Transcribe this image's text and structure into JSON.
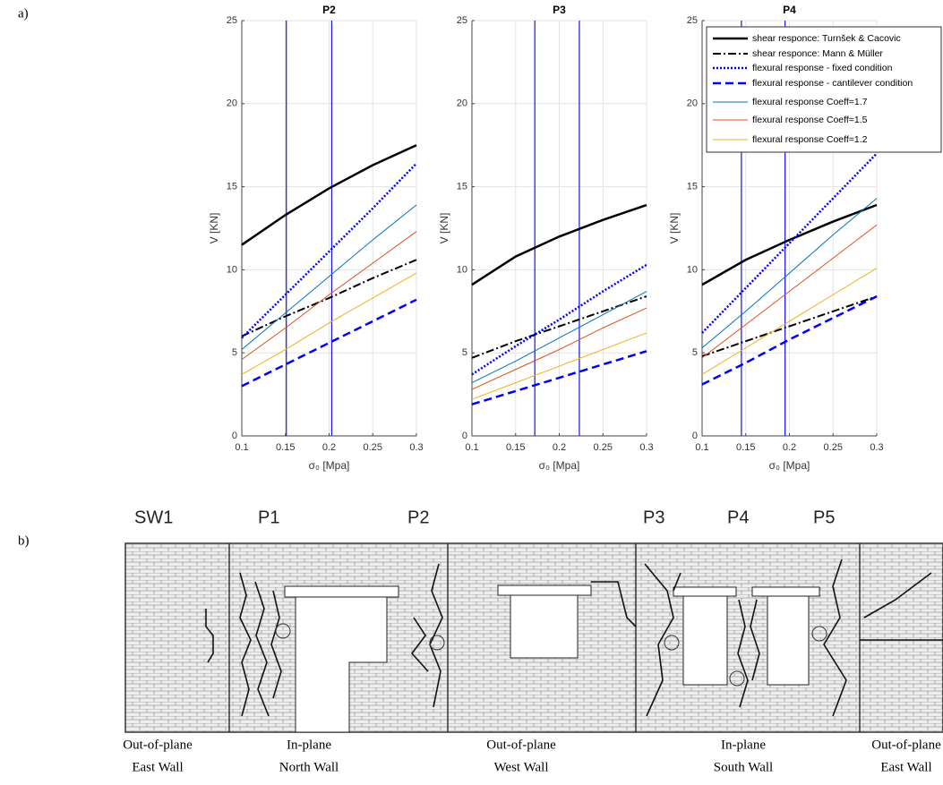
{
  "panel_labels": [
    "a)",
    "b)"
  ],
  "chart_data": [
    {
      "type": "line",
      "title": "P2",
      "xlabel": "σ₀ [Mpa]",
      "ylabel": "V [KN]",
      "x": [
        0.1,
        0.15,
        0.2,
        0.25,
        0.3
      ],
      "xlim": [
        0.1,
        0.3
      ],
      "ylim": [
        0,
        25
      ],
      "xticks": [
        0.1,
        0.15,
        0.2,
        0.25,
        0.3
      ],
      "yticks": [
        0,
        5,
        10,
        15,
        20,
        25
      ],
      "grid": true,
      "vlines": {
        "color": "#1414e6",
        "values": [
          0.151,
          0.203
        ]
      },
      "series": [
        {
          "color": "#000000",
          "dash": "solid",
          "width": 2.5,
          "values": [
            11.5,
            13.3,
            14.9,
            16.3,
            17.5
          ]
        },
        {
          "color": "#000000",
          "dash": "dashdot",
          "width": 2,
          "values": [
            6.0,
            7.2,
            8.3,
            9.5,
            10.6
          ]
        },
        {
          "color": "#0000ff",
          "dash": "dotted",
          "width": 2.5,
          "values": [
            5.9,
            8.5,
            11.1,
            13.7,
            16.4
          ]
        },
        {
          "color": "#0000ff",
          "dash": "dashed",
          "width": 2.5,
          "values": [
            3.0,
            4.3,
            5.6,
            6.9,
            8.2
          ]
        },
        {
          "color": "#0072bd",
          "dash": "solid",
          "width": 1,
          "values": [
            5.2,
            7.4,
            9.6,
            11.8,
            13.9
          ]
        },
        {
          "color": "#d95319",
          "dash": "solid",
          "width": 1,
          "values": [
            4.6,
            6.5,
            8.5,
            10.4,
            12.3
          ]
        },
        {
          "color": "#edb120",
          "dash": "solid",
          "width": 1,
          "values": [
            3.7,
            5.2,
            6.8,
            8.3,
            9.8
          ]
        }
      ]
    },
    {
      "type": "line",
      "title": "P3",
      "xlabel": "σ₀ [Mpa]",
      "ylabel": "V [KN]",
      "x": [
        0.1,
        0.15,
        0.2,
        0.25,
        0.3
      ],
      "xlim": [
        0.1,
        0.3
      ],
      "ylim": [
        0,
        25
      ],
      "xticks": [
        0.1,
        0.15,
        0.2,
        0.25,
        0.3
      ],
      "yticks": [
        0,
        5,
        10,
        15,
        20,
        25
      ],
      "grid": true,
      "vlines": {
        "color": "#1414e6",
        "values": [
          0.172,
          0.223
        ]
      },
      "series": [
        {
          "color": "#000000",
          "dash": "solid",
          "width": 2.5,
          "values": [
            9.1,
            10.8,
            12.0,
            13.0,
            13.9
          ]
        },
        {
          "color": "#000000",
          "dash": "dashdot",
          "width": 2,
          "values": [
            4.7,
            5.7,
            6.6,
            7.5,
            8.4
          ]
        },
        {
          "color": "#0000ff",
          "dash": "dotted",
          "width": 2.5,
          "values": [
            3.7,
            5.4,
            7.0,
            8.7,
            10.3
          ]
        },
        {
          "color": "#0000ff",
          "dash": "dashed",
          "width": 2.5,
          "values": [
            1.9,
            2.7,
            3.5,
            4.3,
            5.1
          ]
        },
        {
          "color": "#0072bd",
          "dash": "solid",
          "width": 1,
          "values": [
            3.2,
            4.5,
            5.9,
            7.3,
            8.7
          ]
        },
        {
          "color": "#d95319",
          "dash": "solid",
          "width": 1,
          "values": [
            2.8,
            4.0,
            5.2,
            6.5,
            7.7
          ]
        },
        {
          "color": "#edb120",
          "dash": "solid",
          "width": 1,
          "values": [
            2.2,
            3.2,
            4.2,
            5.2,
            6.2
          ]
        }
      ]
    },
    {
      "type": "line",
      "title": "P4",
      "xlabel": "σ₀ [Mpa]",
      "ylabel": "V [KN]",
      "x": [
        0.1,
        0.15,
        0.2,
        0.25,
        0.3
      ],
      "xlim": [
        0.1,
        0.3
      ],
      "ylim": [
        0,
        25
      ],
      "xticks": [
        0.1,
        0.15,
        0.2,
        0.25,
        0.3
      ],
      "yticks": [
        0,
        5,
        10,
        15,
        20,
        25
      ],
      "grid": true,
      "legend": "upper right",
      "vlines": {
        "color": "#1414e6",
        "values": [
          0.145,
          0.195
        ]
      },
      "series": [
        {
          "name": "shear responce: Turnšek & Cacovic",
          "color": "#000000",
          "dash": "solid",
          "width": 2.5,
          "values": [
            9.1,
            10.6,
            11.8,
            12.9,
            13.9
          ]
        },
        {
          "name": "shear responce: Mann & Müller",
          "color": "#000000",
          "dash": "dashdot",
          "width": 2,
          "values": [
            4.8,
            5.7,
            6.6,
            7.5,
            8.4
          ]
        },
        {
          "name": "flexural response - fixed condition",
          "color": "#0000ff",
          "dash": "dotted",
          "width": 2.5,
          "values": [
            6.2,
            8.9,
            11.6,
            14.3,
            17.0
          ]
        },
        {
          "name": "flexural response - cantilever condition",
          "color": "#0000ff",
          "dash": "dashed",
          "width": 2.5,
          "values": [
            3.1,
            4.4,
            5.8,
            7.1,
            8.4
          ]
        },
        {
          "name": "flexural response Coeff=1.7",
          "color": "#0072bd",
          "dash": "solid",
          "width": 1,
          "values": [
            5.3,
            7.5,
            9.8,
            12.1,
            14.3
          ]
        },
        {
          "name": "flexural response Coeff=1.5",
          "color": "#d95319",
          "dash": "solid",
          "width": 1,
          "values": [
            4.7,
            6.7,
            8.7,
            10.7,
            12.7
          ]
        },
        {
          "name": "flexural response Coeff=1.2",
          "color": "#edb120",
          "dash": "solid",
          "width": 1,
          "values": [
            3.7,
            5.3,
            6.9,
            8.5,
            10.1
          ]
        }
      ]
    }
  ],
  "wall_drawing": {
    "piers": [
      "SW1",
      "P1",
      "P2",
      "P3",
      "P4",
      "P5"
    ],
    "walls": [
      [
        "Out-of-plane",
        "East Wall"
      ],
      [
        "In-plane",
        "North Wall"
      ],
      [
        "Out-of-plane",
        "West Wall"
      ],
      [
        "In-plane",
        "South Wall"
      ],
      [
        "Out-of-plane",
        "East Wall"
      ]
    ]
  }
}
